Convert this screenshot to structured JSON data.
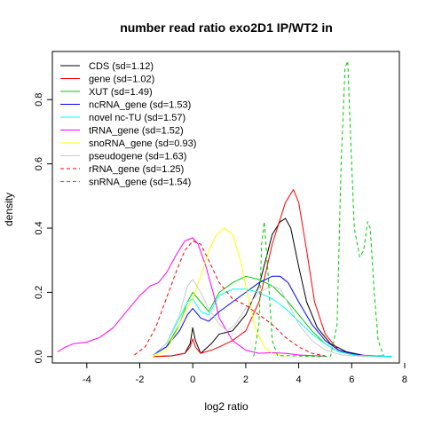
{
  "chart_data": {
    "type": "line",
    "title": "number read ratio exo2D1 IP/WT2 in",
    "xlabel": "log2 ratio",
    "ylabel": "density",
    "xlim": [
      -5.3,
      7.8
    ],
    "ylim": [
      -0.02,
      0.95
    ],
    "xticks": [
      -4,
      -2,
      0,
      2,
      4,
      6,
      8
    ],
    "yticks": [
      0.0,
      0.2,
      0.4,
      0.6,
      0.8
    ],
    "xtick_labels": [
      "-4",
      "-2",
      "0",
      "2",
      "4",
      "6",
      "8"
    ],
    "ytick_labels": [
      "0.0",
      "0.2",
      "0.4",
      "0.6",
      "0.8"
    ],
    "grid": false,
    "legend_position": "top-left",
    "series": [
      {
        "name": "CDS (sd=1.12)",
        "color": "#000000",
        "dash": "solid",
        "points": [
          [
            -1.5,
            0
          ],
          [
            -0.8,
            0.002
          ],
          [
            -0.3,
            0.01
          ],
          [
            -0.1,
            0.04
          ],
          [
            0,
            0.09
          ],
          [
            0.1,
            0.05
          ],
          [
            0.3,
            0.01
          ],
          [
            0.7,
            0.04
          ],
          [
            1.0,
            0.07
          ],
          [
            1.5,
            0.08
          ],
          [
            2.0,
            0.13
          ],
          [
            2.5,
            0.22
          ],
          [
            3.0,
            0.38
          ],
          [
            3.3,
            0.42
          ],
          [
            3.5,
            0.43
          ],
          [
            3.7,
            0.4
          ],
          [
            4.0,
            0.28
          ],
          [
            4.3,
            0.17
          ],
          [
            4.7,
            0.09
          ],
          [
            5.2,
            0.04
          ],
          [
            5.8,
            0.015
          ],
          [
            6.5,
            0.003
          ],
          [
            7.5,
            0
          ]
        ]
      },
      {
        "name": "gene (sd=1.02)",
        "color": "#ff0000",
        "dash": "solid",
        "points": [
          [
            -1.5,
            0
          ],
          [
            -0.8,
            0.002
          ],
          [
            -0.3,
            0.01
          ],
          [
            -0.1,
            0.03
          ],
          [
            0,
            0.055
          ],
          [
            0.1,
            0.03
          ],
          [
            0.3,
            0.01
          ],
          [
            0.7,
            0.02
          ],
          [
            1.0,
            0.03
          ],
          [
            1.5,
            0.05
          ],
          [
            2.0,
            0.08
          ],
          [
            2.5,
            0.17
          ],
          [
            3.0,
            0.35
          ],
          [
            3.5,
            0.48
          ],
          [
            3.8,
            0.52
          ],
          [
            4.0,
            0.48
          ],
          [
            4.3,
            0.33
          ],
          [
            4.6,
            0.17
          ],
          [
            5.0,
            0.07
          ],
          [
            5.5,
            0.02
          ],
          [
            6.2,
            0.003
          ],
          [
            7.5,
            0
          ]
        ]
      },
      {
        "name": "XUT (sd=1.49)",
        "color": "#00cc00",
        "dash": "solid",
        "points": [
          [
            -1.5,
            0.005
          ],
          [
            -1.0,
            0.03
          ],
          [
            -0.5,
            0.1
          ],
          [
            -0.2,
            0.17
          ],
          [
            0,
            0.2
          ],
          [
            0.3,
            0.17
          ],
          [
            0.6,
            0.14
          ],
          [
            1.0,
            0.2
          ],
          [
            1.5,
            0.23
          ],
          [
            2.0,
            0.25
          ],
          [
            2.5,
            0.24
          ],
          [
            3.0,
            0.22
          ],
          [
            3.5,
            0.18
          ],
          [
            4.0,
            0.13
          ],
          [
            4.5,
            0.08
          ],
          [
            5.0,
            0.04
          ],
          [
            5.5,
            0.015
          ],
          [
            6.2,
            0.003
          ],
          [
            7.5,
            0
          ]
        ]
      },
      {
        "name": "ncRNA_gene (sd=1.53)",
        "color": "#0000ff",
        "dash": "solid",
        "points": [
          [
            -1.5,
            0.005
          ],
          [
            -1.0,
            0.03
          ],
          [
            -0.5,
            0.08
          ],
          [
            -0.2,
            0.13
          ],
          [
            0,
            0.15
          ],
          [
            0.3,
            0.12
          ],
          [
            0.6,
            0.11
          ],
          [
            1.0,
            0.14
          ],
          [
            1.5,
            0.17
          ],
          [
            2.0,
            0.2
          ],
          [
            2.5,
            0.23
          ],
          [
            3.0,
            0.25
          ],
          [
            3.3,
            0.25
          ],
          [
            3.6,
            0.23
          ],
          [
            4.0,
            0.17
          ],
          [
            4.5,
            0.1
          ],
          [
            5.0,
            0.05
          ],
          [
            5.5,
            0.02
          ],
          [
            6.2,
            0.005
          ],
          [
            7.5,
            0
          ]
        ]
      },
      {
        "name": "novel nc-TU (sd=1.57)",
        "color": "#00ffff",
        "dash": "solid",
        "points": [
          [
            -1.5,
            0.005
          ],
          [
            -1.0,
            0.04
          ],
          [
            -0.5,
            0.12
          ],
          [
            -0.2,
            0.17
          ],
          [
            0,
            0.18
          ],
          [
            0.3,
            0.14
          ],
          [
            0.6,
            0.13
          ],
          [
            1.0,
            0.19
          ],
          [
            1.5,
            0.21
          ],
          [
            2.0,
            0.21
          ],
          [
            2.5,
            0.2
          ],
          [
            3.0,
            0.18
          ],
          [
            3.5,
            0.15
          ],
          [
            4.0,
            0.11
          ],
          [
            4.5,
            0.07
          ],
          [
            5.0,
            0.04
          ],
          [
            5.5,
            0.015
          ],
          [
            6.2,
            0.004
          ],
          [
            7.5,
            0
          ]
        ]
      },
      {
        "name": "tRNA_gene (sd=1.52)",
        "color": "#ff00ff",
        "dash": "solid",
        "points": [
          [
            -5.1,
            0.015
          ],
          [
            -4.8,
            0.03
          ],
          [
            -4.5,
            0.04
          ],
          [
            -4.0,
            0.045
          ],
          [
            -3.5,
            0.06
          ],
          [
            -3.0,
            0.09
          ],
          [
            -2.5,
            0.14
          ],
          [
            -2.0,
            0.19
          ],
          [
            -1.6,
            0.22
          ],
          [
            -1.3,
            0.23
          ],
          [
            -1.0,
            0.26
          ],
          [
            -0.6,
            0.32
          ],
          [
            -0.3,
            0.36
          ],
          [
            0,
            0.37
          ],
          [
            0.2,
            0.35
          ],
          [
            0.5,
            0.28
          ],
          [
            0.8,
            0.19
          ],
          [
            1.0,
            0.12
          ],
          [
            1.5,
            0.05
          ],
          [
            2.0,
            0.02
          ],
          [
            2.5,
            0.01
          ],
          [
            3.0,
            0.012
          ],
          [
            3.5,
            0.01
          ],
          [
            4.0,
            0.005
          ],
          [
            5.0,
            0.001
          ]
        ]
      },
      {
        "name": "snoRNA_gene (sd=0.93)",
        "color": "#ffff00",
        "dash": "solid",
        "points": [
          [
            -1.5,
            0
          ],
          [
            -1.0,
            0.02
          ],
          [
            -0.6,
            0.08
          ],
          [
            -0.3,
            0.14
          ],
          [
            0,
            0.18
          ],
          [
            0.3,
            0.25
          ],
          [
            0.6,
            0.33
          ],
          [
            0.9,
            0.38
          ],
          [
            1.2,
            0.4
          ],
          [
            1.5,
            0.38
          ],
          [
            1.8,
            0.3
          ],
          [
            2.1,
            0.18
          ],
          [
            2.4,
            0.08
          ],
          [
            2.7,
            0.03
          ],
          [
            3.0,
            0.01
          ],
          [
            3.5,
            0
          ]
        ]
      },
      {
        "name": "pseudogene (sd=1.63)",
        "color": "#cccccc",
        "dash": "solid",
        "points": [
          [
            -1.5,
            0.005
          ],
          [
            -1.0,
            0.04
          ],
          [
            -0.5,
            0.13
          ],
          [
            -0.2,
            0.22
          ],
          [
            0,
            0.24
          ],
          [
            0.3,
            0.2
          ],
          [
            0.6,
            0.15
          ],
          [
            1.0,
            0.1
          ],
          [
            1.3,
            0.08
          ],
          [
            1.6,
            0.1
          ],
          [
            2.0,
            0.15
          ],
          [
            2.5,
            0.2
          ],
          [
            3.0,
            0.22
          ],
          [
            3.3,
            0.21
          ],
          [
            3.7,
            0.15
          ],
          [
            4.0,
            0.1
          ],
          [
            4.5,
            0.05
          ],
          [
            5.0,
            0.02
          ],
          [
            5.6,
            0.005
          ],
          [
            6.5,
            0
          ]
        ]
      },
      {
        "name": "rRNA_gene (sd=1.25)",
        "color": "#ff0000",
        "dash": "dashed",
        "points": [
          [
            -2.2,
            0.005
          ],
          [
            -1.8,
            0.03
          ],
          [
            -1.4,
            0.09
          ],
          [
            -1.0,
            0.18
          ],
          [
            -0.6,
            0.27
          ],
          [
            -0.3,
            0.33
          ],
          [
            0,
            0.36
          ],
          [
            0.3,
            0.35
          ],
          [
            0.6,
            0.3
          ],
          [
            1.0,
            0.23
          ],
          [
            1.5,
            0.18
          ],
          [
            2.0,
            0.16
          ],
          [
            2.5,
            0.13
          ],
          [
            3.0,
            0.1
          ],
          [
            3.5,
            0.06
          ],
          [
            4.0,
            0.03
          ],
          [
            4.5,
            0.01
          ],
          [
            5.0,
            0.002
          ]
        ]
      },
      {
        "name": "snRNA_gene (sd=1.54)",
        "color": "#00cc00",
        "dash": "dashed",
        "points": [
          [
            2.3,
            0
          ],
          [
            2.5,
            0.1
          ],
          [
            2.6,
            0.35
          ],
          [
            2.7,
            0.42
          ],
          [
            2.85,
            0.25
          ],
          [
            3.0,
            0.05
          ],
          [
            3.2,
            0.003
          ],
          [
            5.2,
            0
          ],
          [
            5.45,
            0.1
          ],
          [
            5.6,
            0.6
          ],
          [
            5.75,
            0.9
          ],
          [
            5.85,
            0.92
          ],
          [
            5.95,
            0.7
          ],
          [
            6.1,
            0.4
          ],
          [
            6.3,
            0.31
          ],
          [
            6.45,
            0.33
          ],
          [
            6.6,
            0.42
          ],
          [
            6.7,
            0.4
          ],
          [
            6.85,
            0.2
          ],
          [
            7.0,
            0.05
          ],
          [
            7.2,
            0.003
          ]
        ]
      }
    ]
  }
}
